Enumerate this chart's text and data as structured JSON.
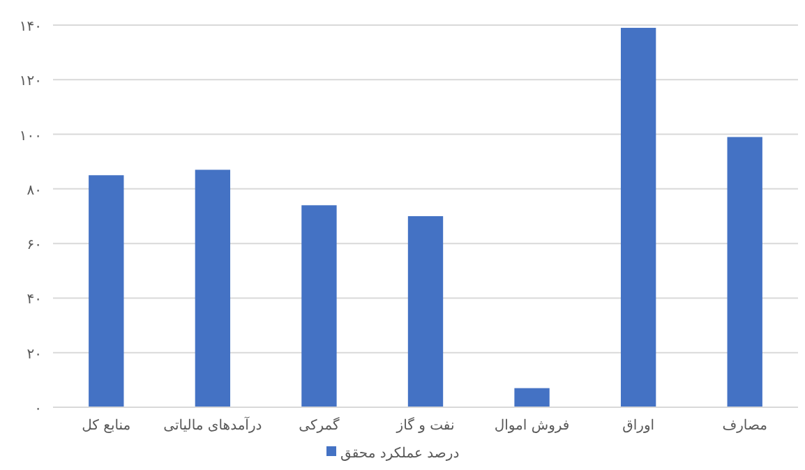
{
  "chart_data": {
    "type": "bar",
    "categories": [
      "منابع کل",
      "درآمدهای مالیاتی",
      "گمرکی",
      "نفت و گاز",
      "فروش اموال",
      "اوراق",
      "مصارف"
    ],
    "series": [
      {
        "name": "درصد عملکرد محقق",
        "color": "#4472c4",
        "values": [
          85,
          87,
          74,
          70,
          7,
          139,
          99
        ]
      }
    ],
    "ylim": [
      0,
      140
    ],
    "yticks": [
      {
        "value": 0,
        "label": "۰"
      },
      {
        "value": 20,
        "label": "۲۰"
      },
      {
        "value": 40,
        "label": "۴۰"
      },
      {
        "value": 60,
        "label": "۶۰"
      },
      {
        "value": 80,
        "label": "۸۰"
      },
      {
        "value": 100,
        "label": "۱۰۰"
      },
      {
        "value": 120,
        "label": "۱۲۰"
      },
      {
        "value": 140,
        "label": "۱۴۰"
      }
    ],
    "grid": "y",
    "legend": "bottom"
  }
}
